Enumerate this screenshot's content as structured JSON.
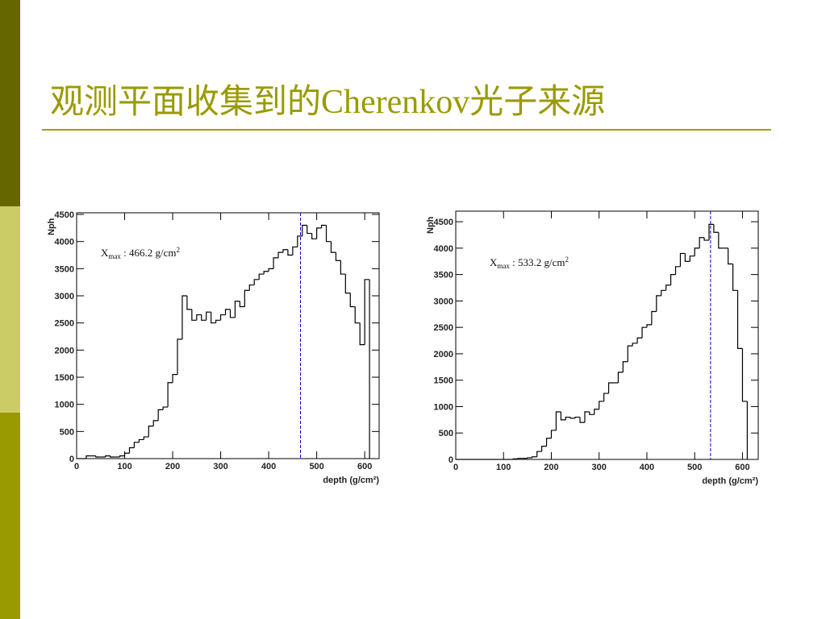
{
  "title": "观测平面收集到的Cherenkov光子来源",
  "chart_data": [
    {
      "type": "histogram",
      "y_label": "Nph",
      "x_label": "depth (g/cm²)",
      "color": "#000000",
      "annotation": {
        "base": "X",
        "sub": "max",
        "text": " : 466.2 g/cm",
        "sup": "2"
      },
      "xmax_line": 466.2,
      "xmax_color": "#0000cc",
      "bins": [
        0,
        10,
        20,
        30,
        40,
        50,
        60,
        70,
        80,
        90,
        100,
        110,
        120,
        130,
        140,
        150,
        160,
        170,
        180,
        190,
        200,
        210,
        220,
        230,
        240,
        250,
        260,
        270,
        280,
        290,
        300,
        310,
        320,
        330,
        340,
        350,
        360,
        370,
        380,
        390,
        400,
        410,
        420,
        430,
        440,
        450,
        460,
        470,
        480,
        490,
        500,
        510,
        520,
        530,
        540,
        550,
        560,
        570,
        580,
        590,
        600,
        610
      ],
      "values": [
        0,
        0,
        50,
        50,
        30,
        30,
        50,
        30,
        30,
        50,
        100,
        200,
        300,
        350,
        400,
        600,
        700,
        900,
        950,
        1400,
        1550,
        2200,
        3000,
        2750,
        2550,
        2650,
        2550,
        2700,
        2500,
        2550,
        2650,
        2750,
        2600,
        2900,
        2800,
        3100,
        3200,
        3300,
        3400,
        3450,
        3500,
        3700,
        3800,
        3850,
        3750,
        3900,
        4100,
        4300,
        4150,
        4050,
        4250,
        4300,
        4000,
        3800,
        3650,
        3400,
        3050,
        2800,
        2500,
        2100,
        3300
      ],
      "xlim": [
        0,
        630
      ],
      "ylim": [
        0,
        4530
      ],
      "xticks": [
        0,
        100,
        200,
        300,
        400,
        500,
        600
      ],
      "yticks": [
        0,
        500,
        1000,
        1500,
        2000,
        2500,
        3000,
        3500,
        4000,
        4500
      ]
    },
    {
      "type": "histogram",
      "y_label": "Nph",
      "x_label": "depth (g/cm²)",
      "color": "#000000",
      "annotation": {
        "base": "X",
        "sub": "max",
        "text": " : 533.2 g/cm",
        "sup": "2"
      },
      "xmax_line": 533.2,
      "xmax_color": "#0000cc",
      "bins": [
        0,
        10,
        20,
        30,
        40,
        50,
        60,
        70,
        80,
        90,
        100,
        110,
        120,
        130,
        140,
        150,
        160,
        170,
        180,
        190,
        200,
        210,
        220,
        230,
        240,
        250,
        260,
        270,
        280,
        290,
        300,
        310,
        320,
        330,
        340,
        350,
        360,
        370,
        380,
        390,
        400,
        410,
        420,
        430,
        440,
        450,
        460,
        470,
        480,
        490,
        500,
        510,
        520,
        530,
        540,
        550,
        560,
        570,
        580,
        590,
        600,
        610
      ],
      "values": [
        0,
        0,
        0,
        0,
        0,
        0,
        0,
        0,
        0,
        0,
        0,
        0,
        10,
        20,
        20,
        30,
        50,
        150,
        250,
        400,
        550,
        900,
        750,
        800,
        780,
        800,
        700,
        900,
        850,
        950,
        1100,
        1250,
        1450,
        1450,
        1650,
        1850,
        2150,
        2200,
        2300,
        2500,
        2550,
        2800,
        3100,
        3200,
        3300,
        3500,
        3650,
        3900,
        3750,
        3850,
        4000,
        4200,
        4150,
        4450,
        4300,
        4000,
        4000,
        3700,
        3200,
        2100,
        1100
      ],
      "xlim": [
        0,
        633
      ],
      "ylim": [
        0,
        4700
      ],
      "xticks": [
        0,
        100,
        200,
        300,
        400,
        500,
        600
      ],
      "yticks": [
        0,
        500,
        1000,
        1500,
        2000,
        2500,
        3000,
        3500,
        4000,
        4500
      ]
    }
  ]
}
